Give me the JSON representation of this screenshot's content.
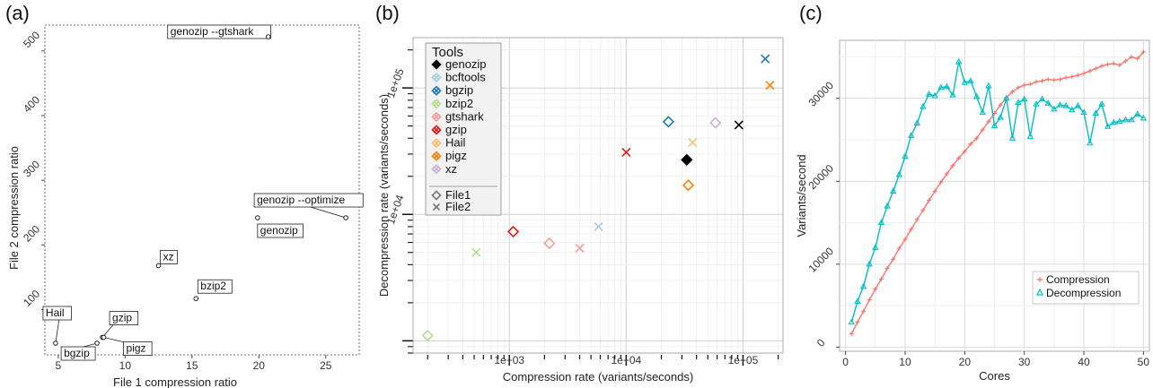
{
  "chart_data": [
    {
      "type": "scatter",
      "panel": "(a)",
      "xlabel": "File 1 compression ratio",
      "ylabel": "File 2 compression ratio",
      "xlim": [
        4,
        27.5
      ],
      "ylim": [
        30,
        540
      ],
      "xticks": [
        "5",
        "10",
        "15",
        "20",
        "25"
      ],
      "xtick_values": [
        5,
        10,
        15,
        20,
        25
      ],
      "yticks": [
        "100",
        "200",
        "300",
        "400",
        "500"
      ],
      "ytick_values": [
        100,
        200,
        300,
        400,
        500
      ],
      "points": [
        {
          "label": "genozip --gtshark",
          "x": 20.7,
          "y": 522
        },
        {
          "label": "genozip --optimize",
          "x": 26.5,
          "y": 242
        },
        {
          "label": "genozip",
          "x": 19.9,
          "y": 242
        },
        {
          "label": "xz",
          "x": 12.5,
          "y": 168
        },
        {
          "label": "bzip2",
          "x": 15.3,
          "y": 117
        },
        {
          "label": "gzip",
          "x": 8.3,
          "y": 57
        },
        {
          "label": "bgzip",
          "x": 7.9,
          "y": 48
        },
        {
          "label": "pigz",
          "x": 8.4,
          "y": 57
        },
        {
          "label": "Hail",
          "x": 4.8,
          "y": 48
        }
      ]
    },
    {
      "type": "scatter",
      "panel": "(b)",
      "xlabel": "Compression rate (variants/seconds)",
      "ylabel": "Decompression rate (variants/seconds)",
      "xscale": "log",
      "yscale": "log",
      "xlim": [
        150,
        220000
      ],
      "ylim": [
        800,
        250000
      ],
      "xticks": [
        "1e+03",
        "1e+04",
        "1e+05"
      ],
      "xtick_values": [
        1000,
        10000,
        100000
      ],
      "yticks": [
        "1e+04",
        "1e+05"
      ],
      "ytick_values": [
        10000,
        100000
      ],
      "legend_title": "Tools",
      "legend_position": "top-left",
      "tools": [
        {
          "name": "genozip",
          "color": "#000000"
        },
        {
          "name": "bcftools",
          "color": "#a6cee3"
        },
        {
          "name": "bgzip",
          "color": "#1f78b4"
        },
        {
          "name": "bzip2",
          "color": "#b2df8a"
        },
        {
          "name": "gtshark",
          "color": "#fb9a99"
        },
        {
          "name": "gzip",
          "color": "#e31a1c"
        },
        {
          "name": "Hail",
          "color": "#fdbf6f"
        },
        {
          "name": "pigz",
          "color": "#ff7f00"
        },
        {
          "name": "xz",
          "color": "#cab2d6"
        }
      ],
      "file_legend": [
        {
          "name": "File1",
          "marker": "diamond"
        },
        {
          "name": "File2",
          "marker": "cross"
        }
      ],
      "points": [
        {
          "tool": "genozip",
          "file": "File1",
          "x": 33000,
          "y": 27000,
          "filled": true
        },
        {
          "tool": "genozip",
          "file": "File2",
          "x": 92000,
          "y": 51000
        },
        {
          "tool": "bcftools",
          "file": "File2",
          "x": 5800,
          "y": 8000
        },
        {
          "tool": "bgzip",
          "file": "File1",
          "x": 23000,
          "y": 54000
        },
        {
          "tool": "bgzip",
          "file": "File2",
          "x": 155000,
          "y": 170000
        },
        {
          "tool": "bzip2",
          "file": "File1",
          "x": 200,
          "y": 1100
        },
        {
          "tool": "bzip2",
          "file": "File2",
          "x": 520,
          "y": 5000
        },
        {
          "tool": "gtshark",
          "file": "File1",
          "x": 2200,
          "y": 5900
        },
        {
          "tool": "gtshark",
          "file": "File2",
          "x": 4000,
          "y": 5400
        },
        {
          "tool": "gzip",
          "file": "File1",
          "x": 1080,
          "y": 7300
        },
        {
          "tool": "gzip",
          "file": "File2",
          "x": 10000,
          "y": 31000
        },
        {
          "tool": "Hail",
          "file": "File2",
          "x": 37000,
          "y": 37000
        },
        {
          "tool": "pigz",
          "file": "File1",
          "x": 34000,
          "y": 17000
        },
        {
          "tool": "pigz",
          "file": "File2",
          "x": 170000,
          "y": 105000
        },
        {
          "tool": "xz",
          "file": "File1",
          "x": 58000,
          "y": 53000
        }
      ]
    },
    {
      "type": "line",
      "panel": "(c)",
      "xlabel": "Cores",
      "ylabel": "Variants/second",
      "xlim": [
        -1,
        51
      ],
      "ylim": [
        -500,
        37000
      ],
      "xticks": [
        "0",
        "10",
        "20",
        "30",
        "40",
        "50"
      ],
      "xtick_values": [
        0,
        10,
        20,
        30,
        40,
        50
      ],
      "yticks": [
        "0",
        "10000",
        "20000",
        "30000"
      ],
      "ytick_values": [
        0,
        10000,
        20000,
        30000
      ],
      "legend_position": "bottom-right",
      "x": [
        1,
        2,
        3,
        4,
        5,
        6,
        7,
        8,
        9,
        10,
        11,
        12,
        13,
        14,
        15,
        16,
        17,
        18,
        19,
        20,
        21,
        22,
        23,
        24,
        25,
        26,
        27,
        28,
        29,
        30,
        31,
        32,
        33,
        34,
        35,
        36,
        37,
        38,
        39,
        40,
        41,
        42,
        43,
        44,
        45,
        46,
        47,
        48,
        49,
        50
      ],
      "series": [
        {
          "name": "Compression",
          "color": "#f8766d",
          "marker": "+",
          "values": [
            1600,
            3000,
            4300,
            5700,
            7000,
            8200,
            9500,
            10600,
            11900,
            13000,
            14200,
            15400,
            16500,
            17700,
            18800,
            19900,
            20900,
            21900,
            22800,
            23600,
            24500,
            25200,
            26200,
            27200,
            28200,
            29200,
            30100,
            30800,
            31300,
            31600,
            31700,
            32000,
            32100,
            32300,
            32200,
            32300,
            32500,
            32600,
            32800,
            33000,
            33300,
            33600,
            33900,
            34100,
            34200,
            34000,
            34500,
            35000,
            34800,
            35600
          ]
        },
        {
          "name": "Decompression",
          "color": "#00bfc4",
          "marker": "triangle",
          "values": [
            3000,
            5500,
            7300,
            10000,
            12000,
            15000,
            17000,
            18800,
            20800,
            23000,
            25500,
            27000,
            29000,
            30500,
            30300,
            31300,
            31400,
            30400,
            34400,
            31900,
            32100,
            30200,
            28300,
            31500,
            26700,
            27700,
            30000,
            25200,
            29500,
            29900,
            25400,
            29300,
            29900,
            29400,
            28700,
            29200,
            29100,
            28600,
            29100,
            28300,
            24600,
            28200,
            29300,
            26600,
            27100,
            27200,
            27400,
            27400,
            28100,
            27600
          ]
        }
      ]
    }
  ]
}
